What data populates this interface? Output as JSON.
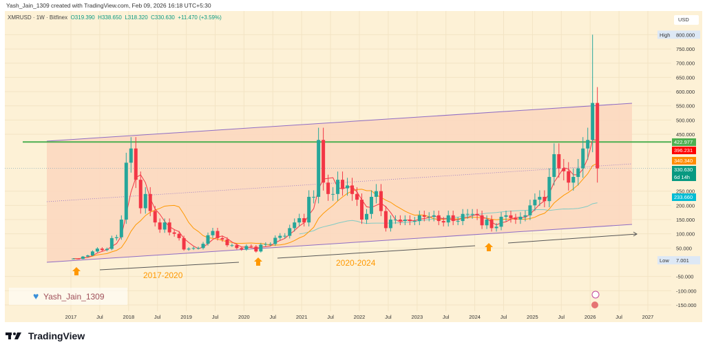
{
  "header": {
    "credit": "Yash_Jain_1309 created with TradingView.com, Feb 09, 2026 16:18 UTC+5:30"
  },
  "legend": {
    "symbol": "XMRUSD · 1W · Bitfinex",
    "open": "O319.390",
    "high": "H338.650",
    "low": "L318.320",
    "close": "C330.630",
    "change": "+11.470 (+3.59%)"
  },
  "currency": "USD",
  "brand": "TradingView",
  "watermark": "Yash_Jain_1309",
  "annotations": {
    "a1": "2017-2020",
    "a2": "2020-2024"
  },
  "colors": {
    "background": "#fdf1d6",
    "up": "#26a69a",
    "down": "#f23645",
    "channel_fill": "#fcd8c0",
    "channel_line": "#8e6cc4",
    "resistance": "#4caf50",
    "ma_fast": "#f23645",
    "ma_mid": "#ff9800",
    "ma_slow": "#80cbc4",
    "arrow": "#ff9800"
  },
  "price_labels": [
    {
      "text": "422.977",
      "value": 422.977,
      "color": "#4caf50"
    },
    {
      "text": "396.231",
      "value": 396.231,
      "color": "#ff0000"
    },
    {
      "text": "340.340",
      "value": 340.34,
      "color": "#ff8c00"
    },
    {
      "text": "330.630",
      "value": 330.63,
      "color": "#089981",
      "sub": "6d 14h"
    },
    {
      "text": "233.660",
      "value": 233.66,
      "color": "#00bcd4"
    }
  ],
  "chart_data": {
    "type": "candlestick",
    "title": "XMRUSD · 1W · Bitfinex",
    "ylim": [
      -150,
      800
    ],
    "y_ticks": [
      "800.000",
      "750.000",
      "700.000",
      "650.000",
      "600.000",
      "550.000",
      "500.000",
      "450.000",
      "250.000",
      "200.000",
      "150.000",
      "100.000",
      "50.000",
      "-50.000",
      "-100.000",
      "-150.000"
    ],
    "y_tick_values": [
      800,
      750,
      700,
      650,
      600,
      550,
      500,
      450,
      250,
      200,
      150,
      100,
      50,
      -50,
      -100,
      -150
    ],
    "high_marker": {
      "label": "High",
      "text": "800.000",
      "value": 800
    },
    "low_marker": {
      "label": "Low",
      "text": "7.001",
      "value": 7.001
    },
    "x_ticks": [
      "2017",
      "Jul",
      "2018",
      "Jul",
      "2019",
      "Jul",
      "2020",
      "Jul",
      "2021",
      "Jul",
      "2022",
      "Jul",
      "2023",
      "Jul",
      "2024",
      "Jul",
      "2025",
      "Jul",
      "2026",
      "Jul",
      "2027"
    ],
    "start": "2017-01",
    "monthly_close": [
      13,
      12,
      20,
      24,
      38,
      48,
      43,
      47,
      85,
      88,
      150,
      350,
      400,
      290,
      190,
      240,
      180,
      140,
      115,
      140,
      105,
      100,
      85,
      45,
      48,
      50,
      50,
      65,
      95,
      110,
      85,
      80,
      60,
      60,
      50,
      45,
      57,
      55,
      38,
      62,
      64,
      64,
      86,
      93,
      93,
      120,
      140,
      155,
      140,
      230,
      230,
      430,
      280,
      240,
      240,
      290,
      260,
      270,
      240,
      220,
      150,
      170,
      230,
      250,
      180,
      120,
      150,
      150,
      145,
      150,
      145,
      145,
      165,
      160,
      160,
      165,
      145,
      140,
      165,
      145,
      145,
      170,
      170,
      170,
      165,
      130,
      150,
      120,
      125,
      160,
      165,
      155,
      150,
      160,
      165,
      200,
      220,
      230,
      215,
      300,
      380,
      330,
      320,
      280,
      300,
      330,
      400,
      430,
      560,
      330
    ],
    "resistance": 422.977,
    "last_price": 330.63
  }
}
